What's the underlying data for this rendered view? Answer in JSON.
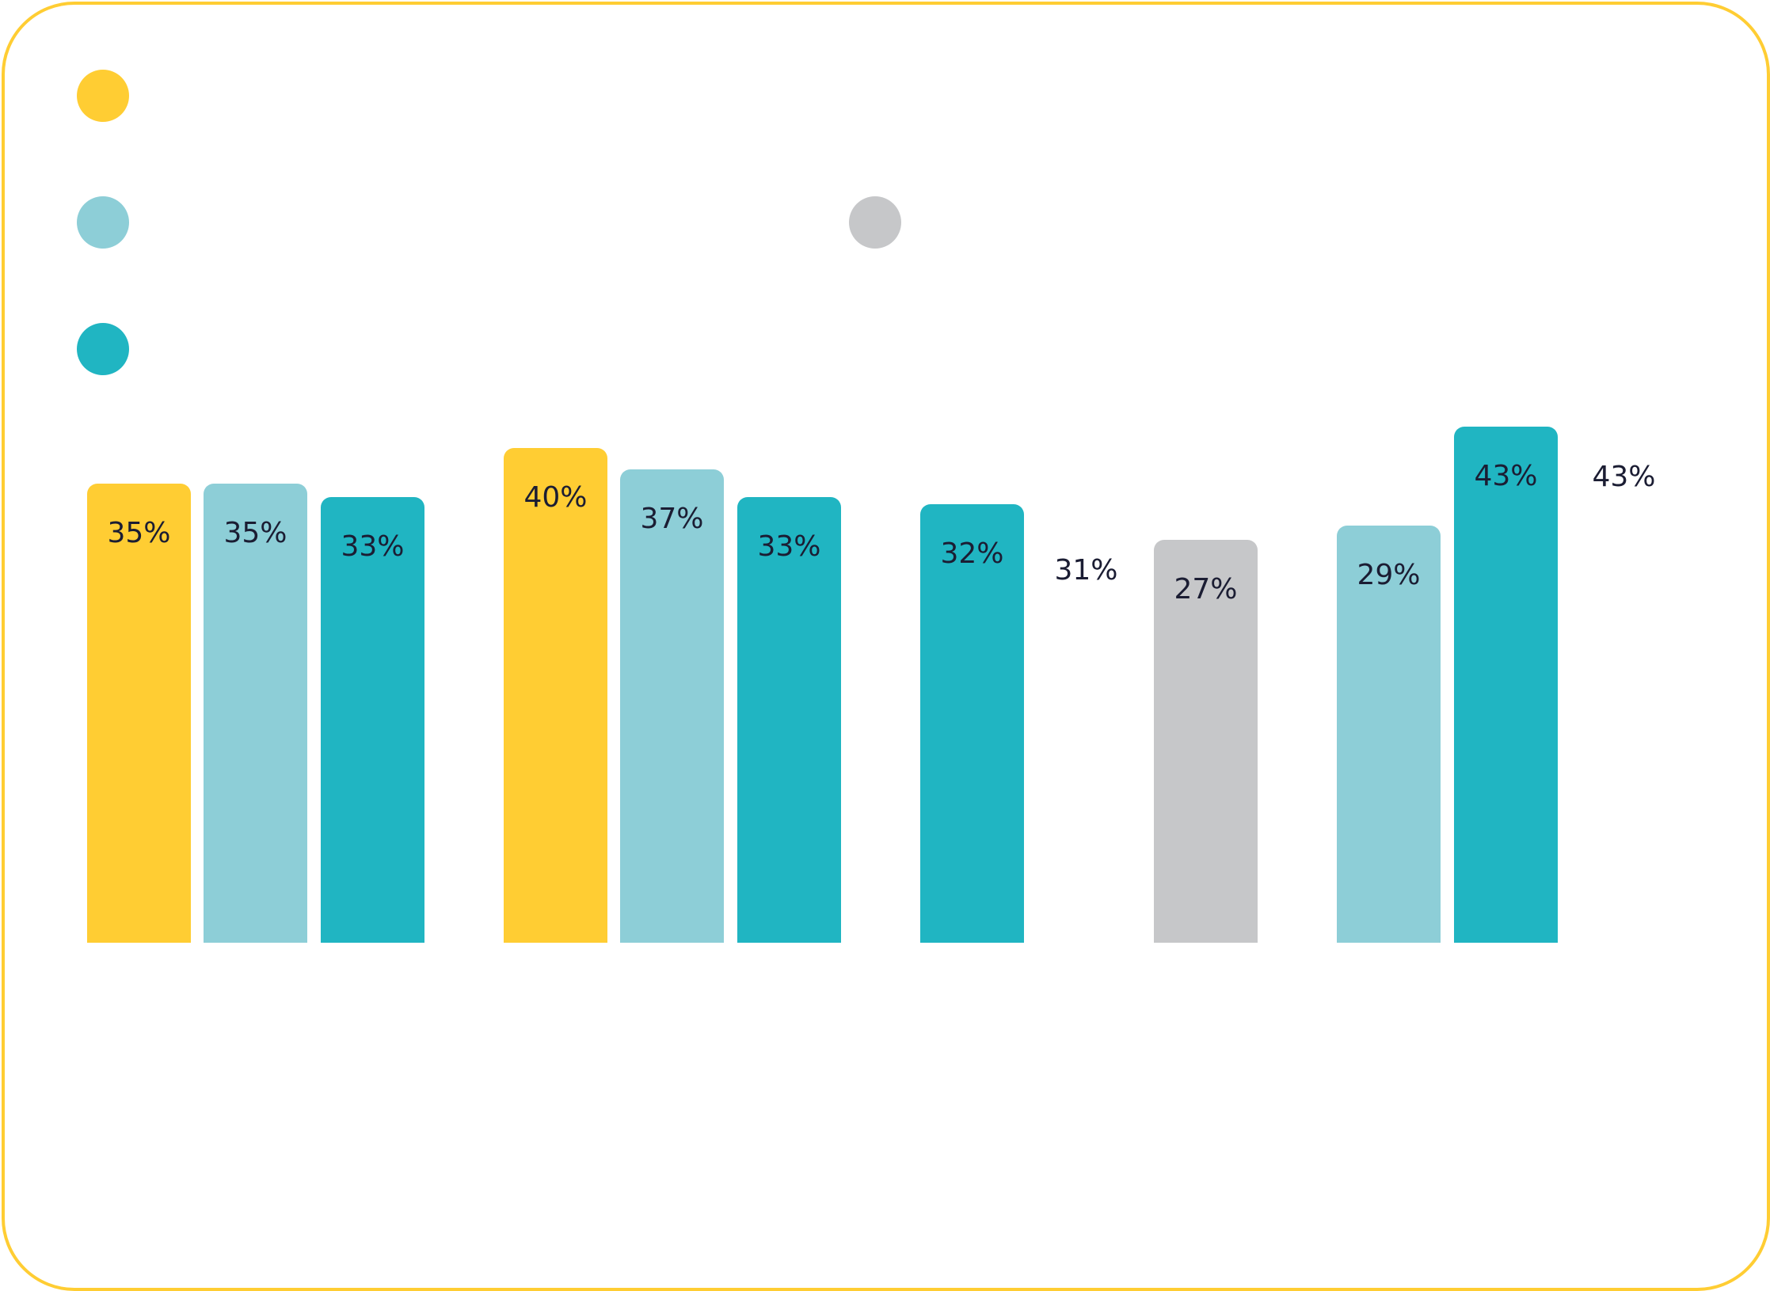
{
  "chart_data": {
    "type": "bar",
    "title": "",
    "xlabel": "",
    "ylabel": "",
    "grid": false,
    "legend_placement": "top-left",
    "series": [
      {
        "name": "",
        "color": "#FFCD33"
      },
      {
        "name": "",
        "color": "#8DCED7"
      },
      {
        "name": "",
        "color": "#20B5C2"
      },
      {
        "name": "",
        "color": "#C6C7C9"
      }
    ],
    "bars": [
      {
        "group": 1,
        "series": 0,
        "value": 35,
        "label": "35%"
      },
      {
        "group": 1,
        "series": 1,
        "value": 35,
        "label": "35%"
      },
      {
        "group": 1,
        "series": 2,
        "value": 33,
        "label": "33%"
      },
      {
        "group": 2,
        "series": 0,
        "value": 40,
        "label": "40%"
      },
      {
        "group": 2,
        "series": 1,
        "value": 37,
        "label": "37%"
      },
      {
        "group": 2,
        "series": 2,
        "value": 33,
        "label": "33%"
      },
      {
        "group": 3,
        "series": 2,
        "value": 32,
        "label": "32%"
      },
      {
        "group": 4,
        "series": 3,
        "value": 27,
        "label": "27%"
      },
      {
        "group": 5,
        "series": 1,
        "value": 29,
        "label": "29%"
      },
      {
        "group": 5,
        "series": 2,
        "value": 43,
        "label": "43%"
      }
    ],
    "floating_labels": [
      "31%",
      "43%"
    ]
  }
}
